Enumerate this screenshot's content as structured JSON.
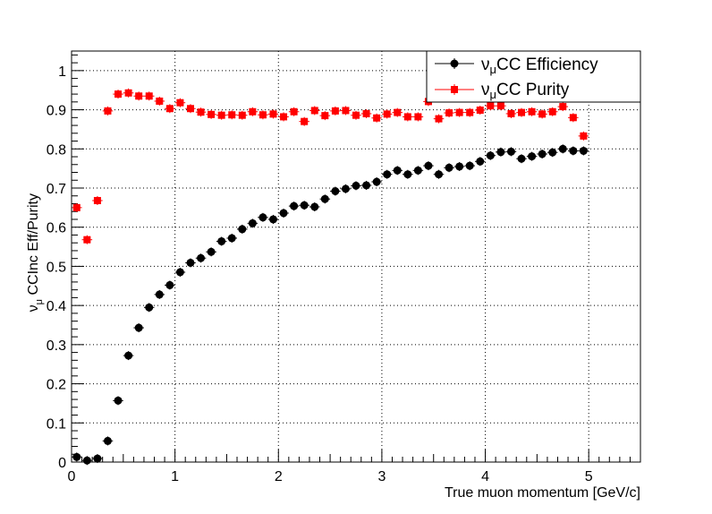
{
  "chart_data": {
    "type": "scatter",
    "xlabel": "True muon momentum [GeV/c]",
    "ylabel": "ν_μ CCInc Eff/Purity",
    "xlim": [
      0,
      5.5
    ],
    "ylim": [
      0,
      1.05
    ],
    "xticks": [
      0,
      1,
      2,
      3,
      4,
      5
    ],
    "yticks": [
      0,
      0.1,
      0.2,
      0.3,
      0.4,
      0.5,
      0.6,
      0.7,
      0.8,
      0.9,
      1
    ],
    "grid": true,
    "legend_position": "top-right",
    "series": [
      {
        "name": "νμCC Efficiency",
        "color": "#000000",
        "marker": "circle",
        "x": [
          0.05,
          0.15,
          0.25,
          0.35,
          0.45,
          0.55,
          0.65,
          0.75,
          0.85,
          0.95,
          1.05,
          1.15,
          1.25,
          1.35,
          1.45,
          1.55,
          1.65,
          1.75,
          1.85,
          1.95,
          2.05,
          2.15,
          2.25,
          2.35,
          2.45,
          2.55,
          2.65,
          2.75,
          2.85,
          2.95,
          3.05,
          3.15,
          3.25,
          3.35,
          3.45,
          3.55,
          3.65,
          3.75,
          3.85,
          3.95,
          4.05,
          4.15,
          4.25,
          4.35,
          4.45,
          4.55,
          4.65,
          4.75,
          4.85,
          4.95
        ],
        "y": [
          0.013,
          0.004,
          0.009,
          0.054,
          0.157,
          0.272,
          0.343,
          0.395,
          0.428,
          0.452,
          0.485,
          0.509,
          0.521,
          0.537,
          0.564,
          0.572,
          0.595,
          0.61,
          0.625,
          0.62,
          0.636,
          0.654,
          0.656,
          0.652,
          0.672,
          0.692,
          0.698,
          0.706,
          0.707,
          0.716,
          0.735,
          0.745,
          0.735,
          0.745,
          0.757,
          0.735,
          0.752,
          0.755,
          0.757,
          0.768,
          0.783,
          0.792,
          0.793,
          0.775,
          0.781,
          0.787,
          0.791,
          0.8,
          0.795,
          0.795
        ]
      },
      {
        "name": "νμCC Purity",
        "color": "#ff0000",
        "marker": "square",
        "x": [
          0.05,
          0.15,
          0.25,
          0.35,
          0.45,
          0.55,
          0.65,
          0.75,
          0.85,
          0.95,
          1.05,
          1.15,
          1.25,
          1.35,
          1.45,
          1.55,
          1.65,
          1.75,
          1.85,
          1.95,
          2.05,
          2.15,
          2.25,
          2.35,
          2.45,
          2.55,
          2.65,
          2.75,
          2.85,
          2.95,
          3.05,
          3.15,
          3.25,
          3.35,
          3.45,
          3.55,
          3.65,
          3.75,
          3.85,
          3.95,
          4.05,
          4.15,
          4.25,
          4.35,
          4.45,
          4.55,
          4.65,
          4.75,
          4.85,
          4.95
        ],
        "y": [
          0.65,
          0.568,
          0.668,
          0.897,
          0.94,
          0.943,
          0.935,
          0.935,
          0.922,
          0.903,
          0.918,
          0.903,
          0.894,
          0.888,
          0.886,
          0.887,
          0.886,
          0.895,
          0.887,
          0.889,
          0.882,
          0.895,
          0.87,
          0.898,
          0.885,
          0.897,
          0.898,
          0.886,
          0.89,
          0.879,
          0.889,
          0.893,
          0.882,
          0.882,
          0.921,
          0.877,
          0.892,
          0.893,
          0.893,
          0.899,
          0.91,
          0.91,
          0.89,
          0.893,
          0.895,
          0.889,
          0.895,
          0.908,
          0.88,
          0.833
        ]
      }
    ]
  }
}
